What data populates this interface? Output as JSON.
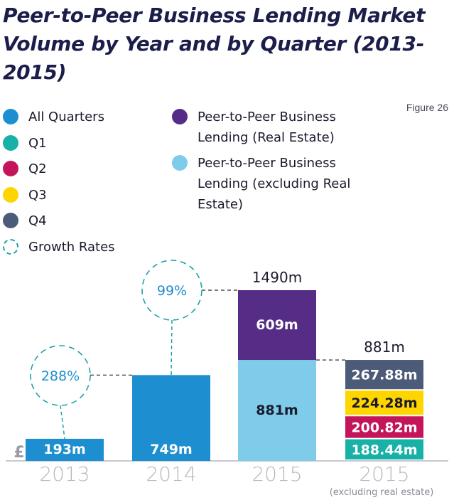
{
  "title": "Peer-to-Peer Business Lending Market Volume by Year and by Quarter (2013-2015)",
  "figure_label": "Figure 26",
  "currency_symbol": "£",
  "legend_left": [
    {
      "label": "All Quarters",
      "color": "#1d8fd0"
    },
    {
      "label": "Q1",
      "color": "#17b1a8"
    },
    {
      "label": "Q2",
      "color": "#c4145a"
    },
    {
      "label": "Q3",
      "color": "#ffd500"
    },
    {
      "label": "Q4",
      "color": "#4c5c78"
    },
    {
      "label": "Growth Rates",
      "color": "#1ba3a8",
      "dashed": true
    }
  ],
  "legend_right": [
    {
      "label": "Peer-to-Peer Business Lending (Real Estate)",
      "color": "#552d86"
    },
    {
      "label": "Peer-to-Peer Business Lending (excluding Real Estate)",
      "color": "#7ecbea"
    }
  ],
  "chart_data": {
    "type": "bar",
    "stacked": true,
    "unit": "m",
    "categories": [
      "2013",
      "2014",
      "2015",
      "2015"
    ],
    "category_sublabels": [
      "",
      "",
      "",
      "(excluding real estate)"
    ],
    "bars": [
      {
        "total_label": "",
        "segments": [
          {
            "series": "All Quarters",
            "value": 193,
            "label": "193m",
            "color": "#1d8fd0"
          }
        ]
      },
      {
        "total_label": "",
        "segments": [
          {
            "series": "All Quarters",
            "value": 749,
            "label": "749m",
            "color": "#1d8fd0"
          }
        ]
      },
      {
        "total_label": "1490m",
        "segments": [
          {
            "series": "Peer-to-Peer Business Lending (excluding Real Estate)",
            "value": 881,
            "label": "881m",
            "color": "#7ecbea"
          },
          {
            "series": "Peer-to-Peer Business Lending (Real Estate)",
            "value": 609,
            "label": "609m",
            "color": "#552d86"
          }
        ]
      },
      {
        "total_label": "881m",
        "segments": [
          {
            "series": "Q1",
            "value": 188.44,
            "label": "188.44m",
            "color": "#17b1a8"
          },
          {
            "series": "Q2",
            "value": 200.82,
            "label": "200.82m",
            "color": "#c4145a"
          },
          {
            "series": "Q3",
            "value": 224.28,
            "label": "224.28m",
            "color": "#ffd500"
          },
          {
            "series": "Q4",
            "value": 267.88,
            "label": "267.88m",
            "color": "#4c5c78"
          }
        ]
      }
    ],
    "growth_rates": [
      {
        "label": "288%",
        "from": "2013",
        "to": "2014"
      },
      {
        "label": "99%",
        "from": "2014",
        "to": "2015"
      }
    ]
  }
}
